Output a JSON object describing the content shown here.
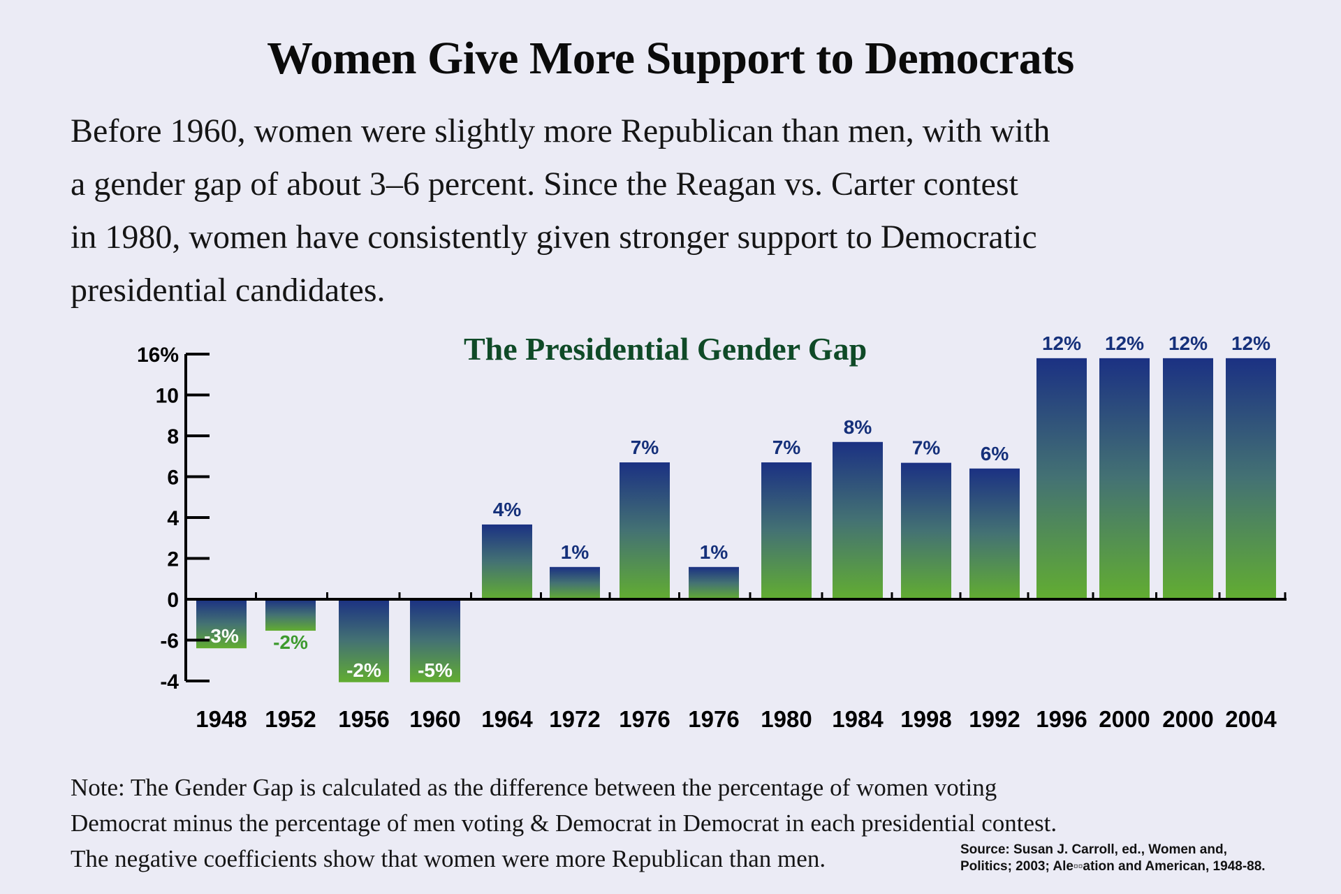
{
  "header": {
    "title": "Women Give More Support to Democrats",
    "intro_lines": [
      "Before 1960, women were slightly more Republican than men, with with",
      "a gender gap of about 3–6 percent. Since the Reagan vs. Carter contest",
      "in 1980, women have consistently given stronger support to Democratic",
      "presidential candidates."
    ]
  },
  "colors": {
    "background": "#ebebf5",
    "bar_top": "#1b3183",
    "bar_mid": "#447273",
    "bar_bottom": "#62ad31",
    "label_positive": "#15307a",
    "label_negative_outside": "#3d9a2e",
    "label_negative_inside": "#ffffff",
    "chart_title": "#0f4a27",
    "axis": "#000000"
  },
  "chart_data": {
    "type": "bar",
    "title": "The Presidential Gender Gap",
    "xlabel": "",
    "ylabel": "",
    "grid": false,
    "legend": "none",
    "y_ticks": [
      "16%",
      "10",
      "8",
      "6",
      "4",
      "2",
      "0",
      "-6",
      "-4"
    ],
    "y_tick_values": [
      16,
      10,
      8,
      6,
      4,
      2,
      0,
      -6,
      -4
    ],
    "y_axis_note": "tick labels are unevenly valued but evenly spaced; bar_extent_ticks measures each bar in drawn tick intervals from 0",
    "categories": [
      "1948",
      "1952",
      "1956",
      "1960",
      "1964",
      "1972",
      "1976",
      "1976",
      "1980",
      "1984",
      "1998",
      "1992",
      "1996",
      "2000",
      "2000",
      "2004"
    ],
    "series": [
      {
        "name": "Gender gap",
        "values": [
          -3,
          -2,
          -2,
          -5,
          4,
          1,
          7,
          1,
          7,
          8,
          7,
          6,
          12,
          12,
          12,
          12
        ],
        "data_labels": [
          "-3%",
          "-2%",
          "-2%",
          "-5%",
          "4%",
          "1%",
          "7%",
          "1%",
          "7%",
          "8%",
          "7%",
          "6%",
          "12%",
          "12%",
          "12%",
          "12%"
        ],
        "bar_extent_ticks": [
          -1.2,
          -0.77,
          -2.03,
          -2.03,
          1.83,
          0.79,
          3.35,
          0.79,
          3.35,
          3.85,
          3.34,
          3.2,
          5.9,
          5.9,
          5.9,
          5.9
        ],
        "label_placement": [
          "inside",
          "below",
          "inside",
          "inside",
          "above",
          "above",
          "above",
          "above",
          "above",
          "above",
          "above",
          "above",
          "above",
          "above",
          "above",
          "above"
        ]
      }
    ]
  },
  "footer": {
    "note_lines": [
      "Note: The Gender Gap is calculated as the difference between the percentage of women voting",
      "Democrat minus the percentage of men voting & Democrat in Democrat in each presidential contest.",
      "The negative coefficients show that women were more Republican than men."
    ],
    "source_lines": [
      "Source: Susan J. Carroll, ed., Women and,",
      "Politics; 2003; Ale▫▫ation and American, 1948-88."
    ]
  }
}
